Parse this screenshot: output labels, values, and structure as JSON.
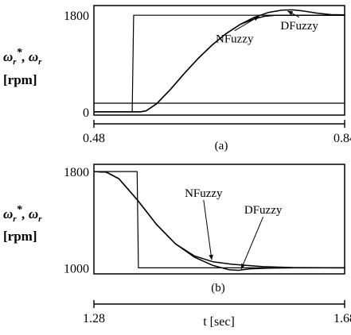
{
  "chart_data": [
    {
      "type": "line",
      "panel_label": "(a)",
      "ylabel": [
        "ω_r*, ω_r",
        "[rpm]"
      ],
      "xlabel": "",
      "xlim": [
        0.48,
        0.84
      ],
      "ylim": [
        -60,
        1980
      ],
      "x_ticks": [
        {
          "value": 0.48,
          "label": "0.48"
        },
        {
          "value": 0.84,
          "label": "0.84"
        }
      ],
      "y_ticks": [
        {
          "value": 1800,
          "label": "1800"
        },
        {
          "value": 0,
          "label": "0"
        }
      ],
      "series": [
        {
          "role": "reference",
          "points": [
            [
              0.48,
              0
            ],
            [
              0.535,
              0
            ],
            [
              0.537,
              1800
            ],
            [
              0.84,
              1800
            ]
          ]
        },
        {
          "name": "NFuzzy",
          "points": [
            [
              0.48,
              0
            ],
            [
              0.547,
              0
            ],
            [
              0.555,
              20
            ],
            [
              0.57,
              150
            ],
            [
              0.59,
              420
            ],
            [
              0.61,
              720
            ],
            [
              0.63,
              1000
            ],
            [
              0.65,
              1250
            ],
            [
              0.67,
              1460
            ],
            [
              0.69,
              1630
            ],
            [
              0.71,
              1730
            ],
            [
              0.725,
              1780
            ],
            [
              0.74,
              1800
            ],
            [
              0.84,
              1800
            ]
          ]
        },
        {
          "name": "DFuzzy",
          "points": [
            [
              0.48,
              0
            ],
            [
              0.547,
              0
            ],
            [
              0.555,
              20
            ],
            [
              0.57,
              150
            ],
            [
              0.59,
              420
            ],
            [
              0.61,
              720
            ],
            [
              0.63,
              1000
            ],
            [
              0.65,
              1250
            ],
            [
              0.67,
              1460
            ],
            [
              0.69,
              1630
            ],
            [
              0.71,
              1760
            ],
            [
              0.73,
              1850
            ],
            [
              0.75,
              1895
            ],
            [
              0.765,
              1900
            ],
            [
              0.78,
              1880
            ],
            [
              0.8,
              1840
            ],
            [
              0.82,
              1812
            ],
            [
              0.84,
              1805
            ]
          ]
        }
      ],
      "annotations": [
        {
          "text": "NFuzzy",
          "x": 0.682,
          "y": 1290,
          "points_to": [
            0.717,
            1780
          ]
        },
        {
          "text": "DFuzzy",
          "x": 0.775,
          "y": 1540,
          "points_to": [
            0.758,
            1880
          ]
        }
      ]
    },
    {
      "type": "line",
      "panel_label": "(b)",
      "ylabel": [
        "ω_r*, ω_r",
        "[rpm]"
      ],
      "xlabel": "t [sec]",
      "xlim": [
        1.28,
        1.68
      ],
      "ylim": [
        950,
        1860
      ],
      "x_ticks": [
        {
          "value": 1.28,
          "label": "1.28"
        },
        {
          "value": 1.68,
          "label": "1.68"
        }
      ],
      "y_ticks": [
        {
          "value": 1800,
          "label": "1800"
        },
        {
          "value": 1000,
          "label": "1000"
        }
      ],
      "series": [
        {
          "role": "reference",
          "points": [
            [
              1.28,
              1800
            ],
            [
              1.349,
              1800
            ],
            [
              1.351,
              1000
            ],
            [
              1.68,
              1000
            ]
          ]
        },
        {
          "name": "NFuzzy",
          "points": [
            [
              1.28,
              1800
            ],
            [
              1.3,
              1795
            ],
            [
              1.32,
              1740
            ],
            [
              1.35,
              1560
            ],
            [
              1.38,
              1360
            ],
            [
              1.41,
              1200
            ],
            [
              1.44,
              1100
            ],
            [
              1.47,
              1050
            ],
            [
              1.5,
              1030
            ],
            [
              1.55,
              1010
            ],
            [
              1.6,
              1002
            ],
            [
              1.68,
              1000
            ]
          ]
        },
        {
          "name": "DFuzzy",
          "points": [
            [
              1.28,
              1800
            ],
            [
              1.3,
              1795
            ],
            [
              1.32,
              1740
            ],
            [
              1.35,
              1560
            ],
            [
              1.38,
              1360
            ],
            [
              1.41,
              1200
            ],
            [
              1.44,
              1090
            ],
            [
              1.47,
              1020
            ],
            [
              1.495,
              985
            ],
            [
              1.51,
              980
            ],
            [
              1.53,
              992
            ],
            [
              1.56,
              998
            ],
            [
              1.6,
              1000
            ],
            [
              1.68,
              1000
            ]
          ]
        }
      ],
      "annotations": [
        {
          "text": "NFuzzy",
          "x": 1.455,
          "y": 1590,
          "points_to": [
            1.468,
            1065
          ]
        },
        {
          "text": "DFuzzy",
          "x": 1.55,
          "y": 1450,
          "points_to": [
            1.515,
            990
          ]
        }
      ]
    }
  ]
}
